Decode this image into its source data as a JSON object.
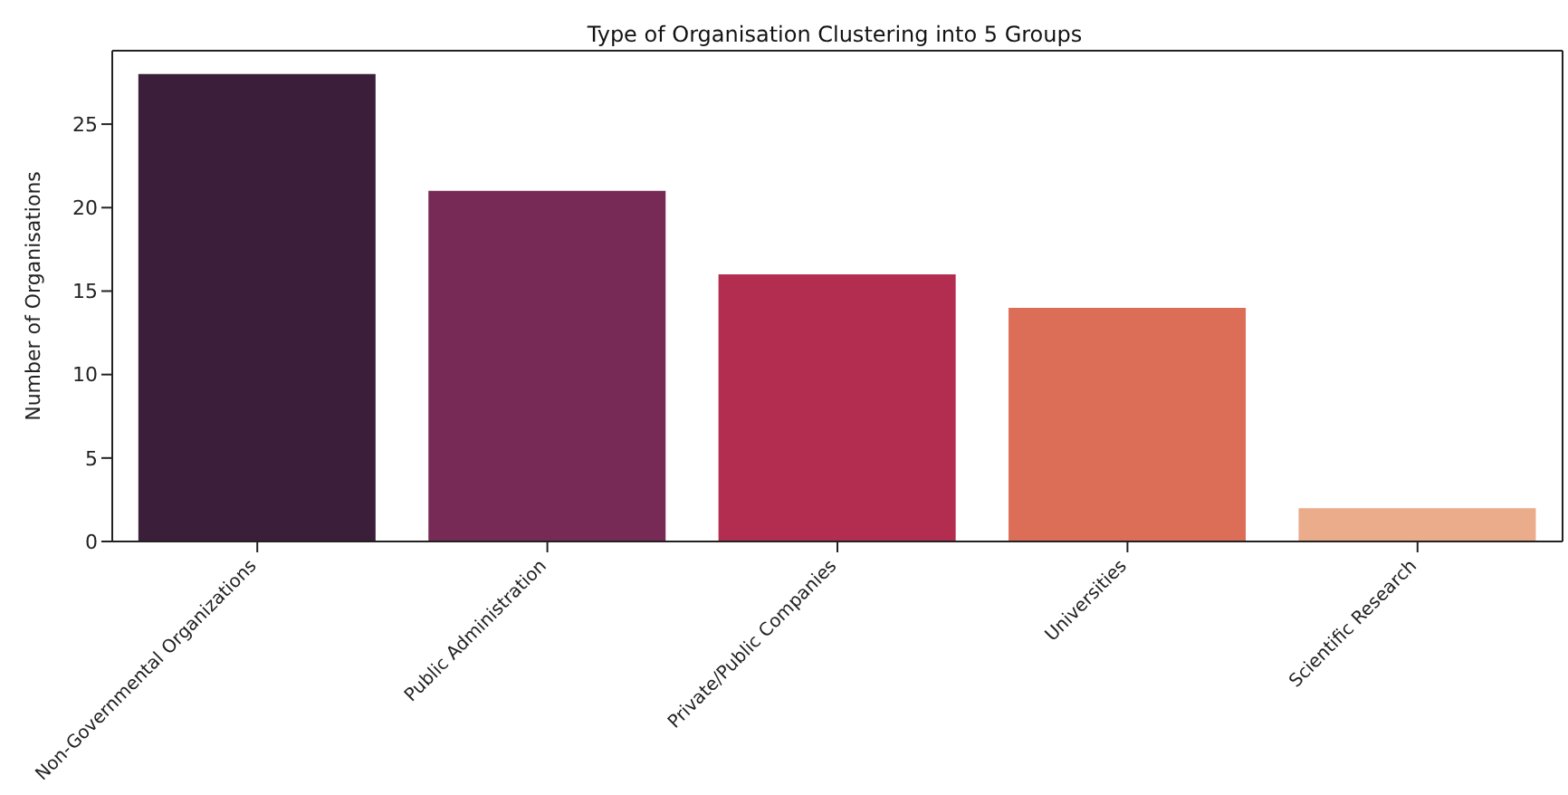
{
  "chart_data": {
    "type": "bar",
    "title": "Type of Organisation Clustering into 5 Groups",
    "ylabel": "Number of Organisations",
    "categories": [
      "Non-Governmental Organizations",
      "Public Administration",
      "Private/Public Companies",
      "Universities",
      "Scientific Research"
    ],
    "values": [
      28,
      21,
      16,
      14,
      2
    ],
    "colors": [
      "#3b1f3a",
      "#772a55",
      "#b32d51",
      "#dc6e57",
      "#eaac8b"
    ],
    "ylim": [
      0,
      29.4
    ],
    "yticks": [
      0,
      5,
      10,
      15,
      20,
      25
    ],
    "grid": false,
    "legend": false
  }
}
